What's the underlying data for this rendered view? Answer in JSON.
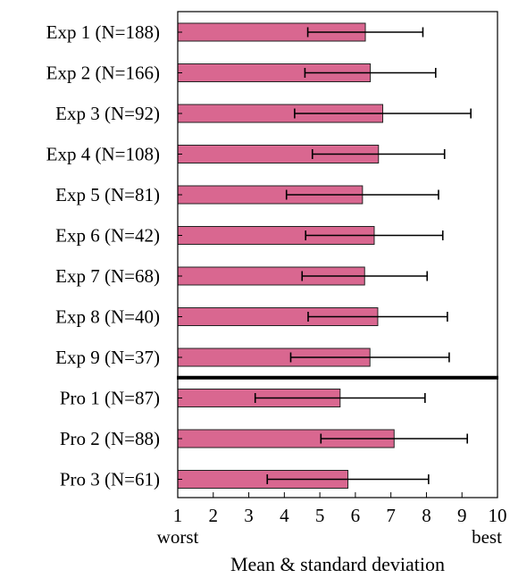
{
  "chart_data": {
    "type": "bar",
    "orientation": "horizontal",
    "categories": [
      "Exp 1 (N=188)",
      "Exp 2 (N=166)",
      "Exp 3 (N=92)",
      "Exp 4 (N=108)",
      "Exp 5 (N=81)",
      "Exp 6 (N=42)",
      "Exp 7 (N=68)",
      "Exp 8 (N=40)",
      "Exp 9 (N=37)",
      "Pro 1 (N=87)",
      "Pro 2 (N=88)",
      "Pro 3 (N=61)"
    ],
    "values": [
      6.28,
      6.42,
      6.77,
      6.65,
      6.2,
      6.53,
      6.26,
      6.63,
      6.41,
      5.57,
      7.09,
      5.79
    ],
    "error": [
      1.62,
      1.84,
      2.48,
      1.86,
      2.14,
      1.93,
      1.76,
      1.96,
      2.23,
      2.39,
      2.06,
      2.27
    ],
    "separator_after_index": 8,
    "xlim": [
      1,
      10
    ],
    "xticks": [
      1,
      2,
      3,
      4,
      5,
      6,
      7,
      8,
      9,
      10
    ],
    "x_annotations": {
      "low": "worst",
      "high": "best"
    },
    "xlabel": "Mean & standard deviation",
    "ylabel": "",
    "title": "",
    "bar_color": "#d96790",
    "bar_edge_color": "#222222",
    "grid": false
  }
}
